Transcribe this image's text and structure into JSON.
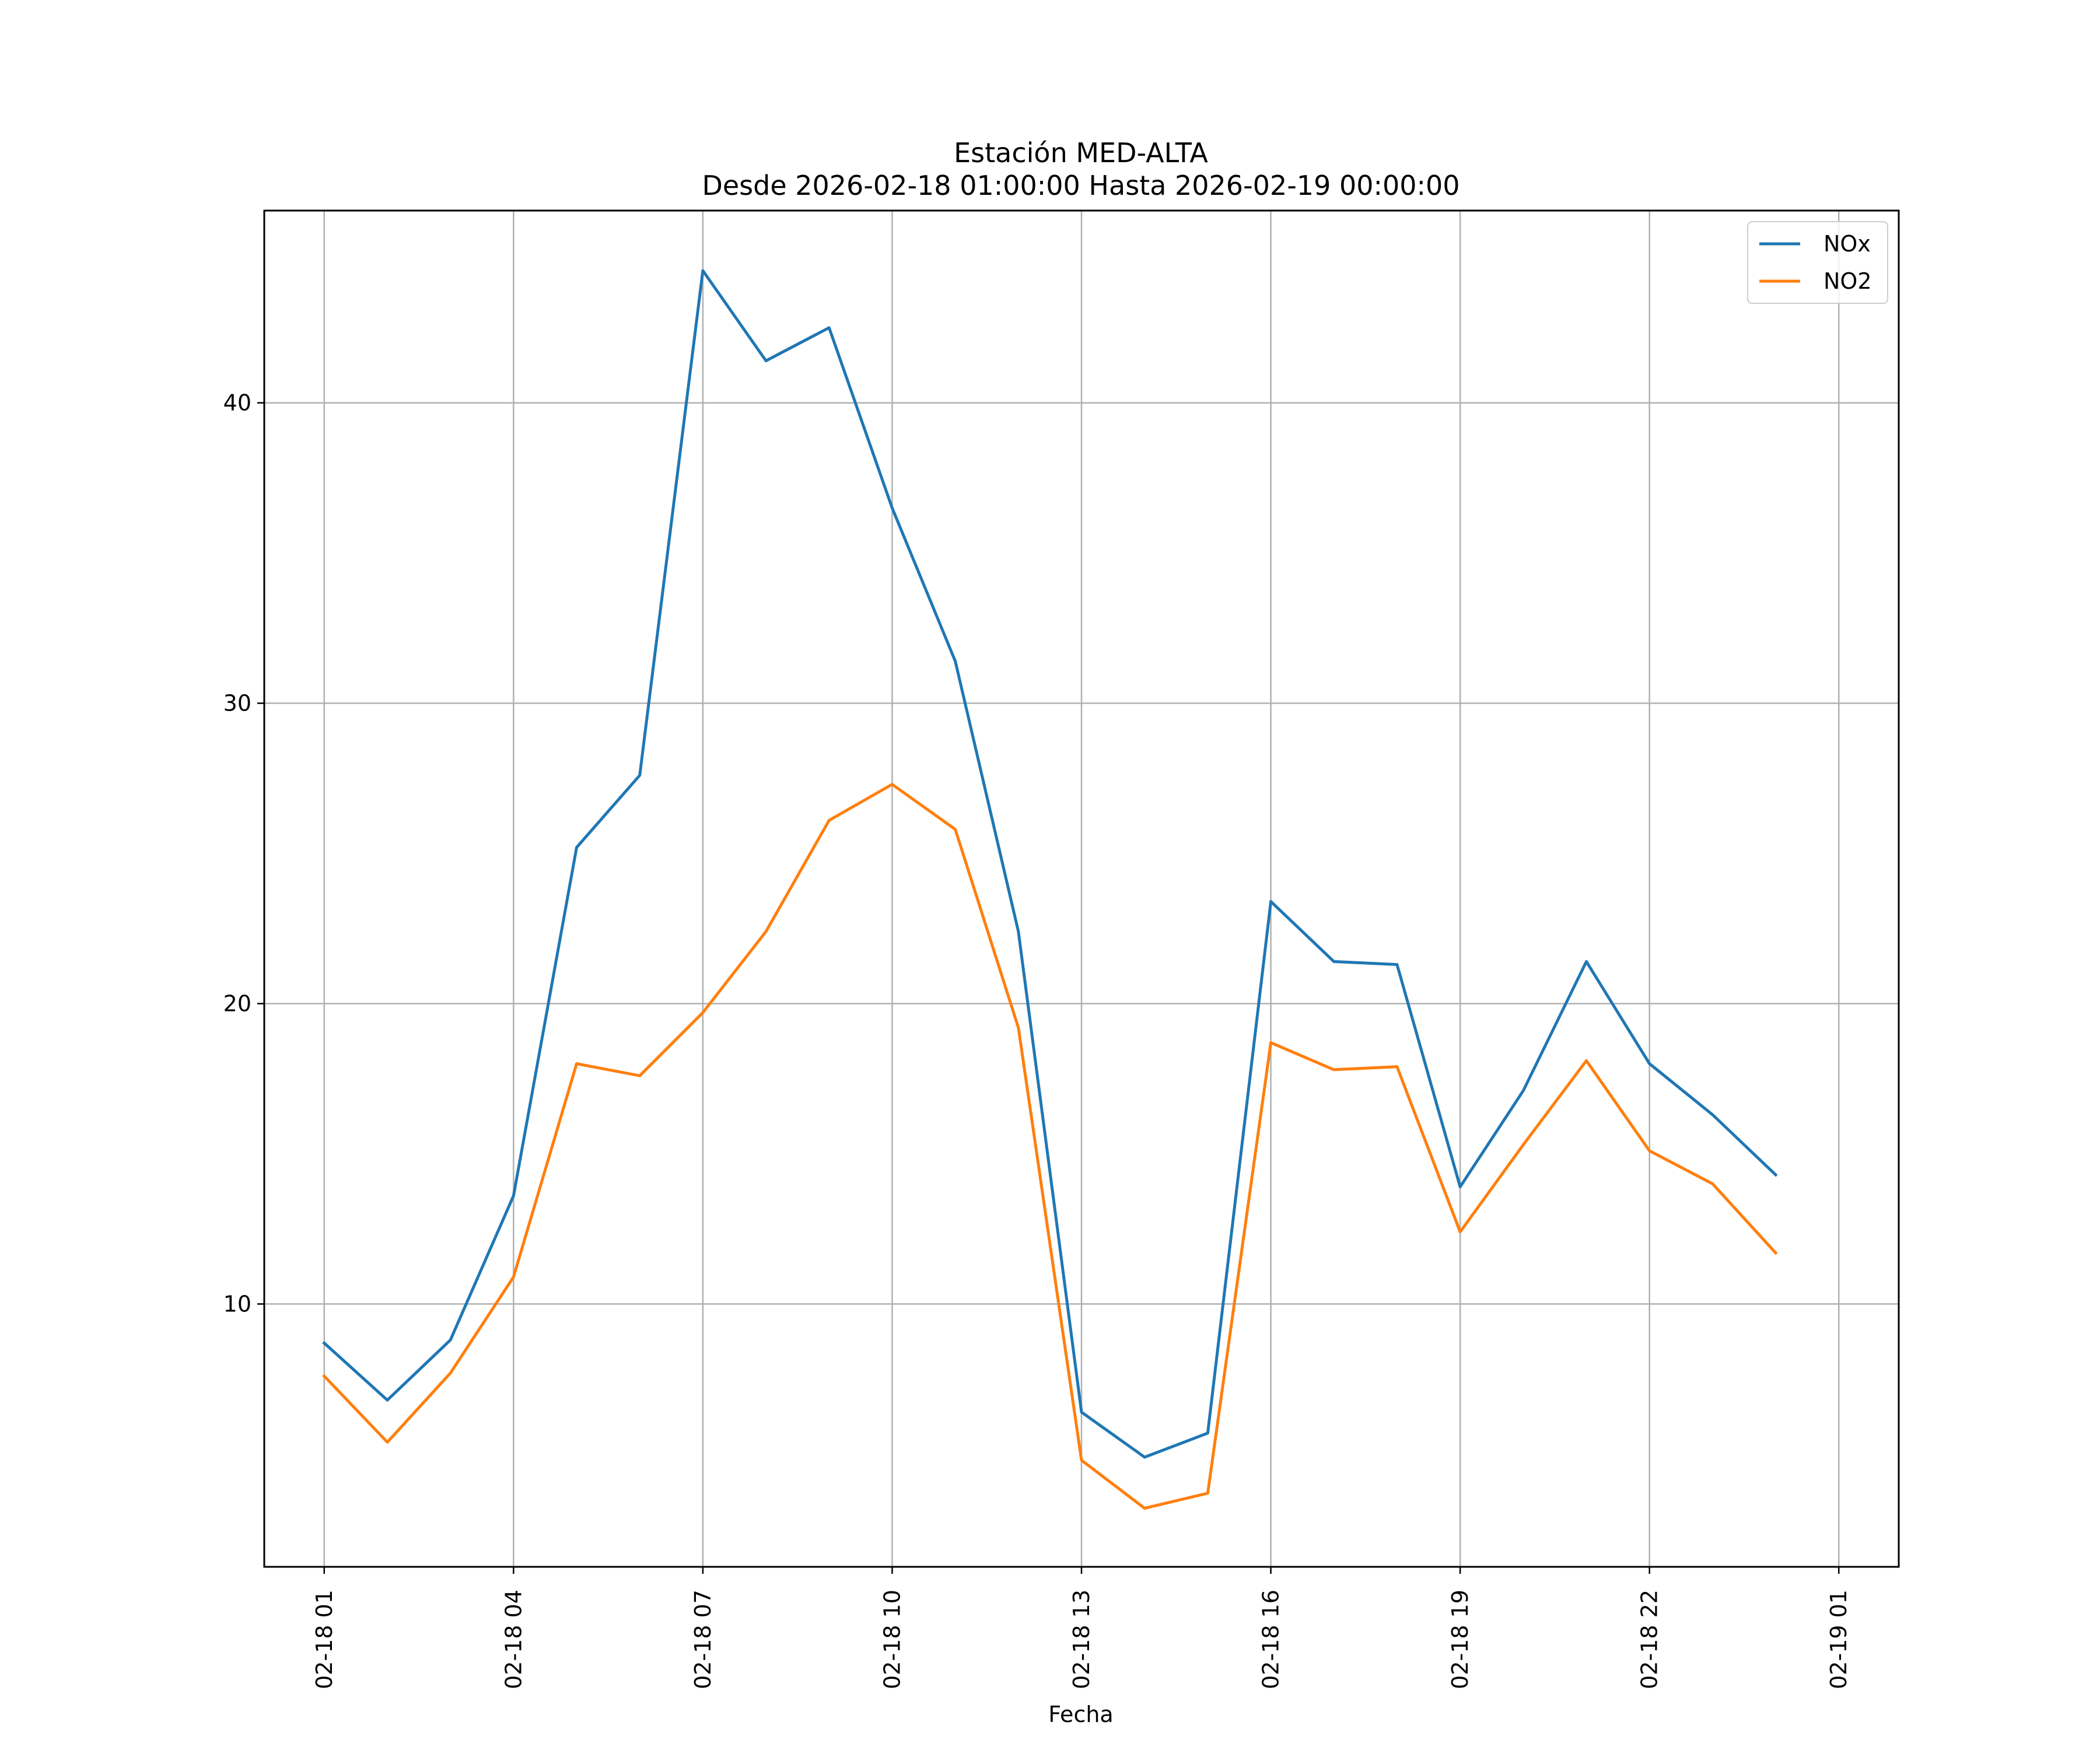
{
  "chart_data": {
    "type": "line",
    "title": "Estación MED-ALTA",
    "subtitle": "Desde 2026-02-18 01:00:00 Hasta 2026-02-19 00:00:00",
    "xlabel": "Fecha",
    "ylabel": "",
    "x": [
      "2026-02-18 01:00",
      "2026-02-18 02:00",
      "2026-02-18 03:00",
      "2026-02-18 04:00",
      "2026-02-18 05:00",
      "2026-02-18 06:00",
      "2026-02-18 07:00",
      "2026-02-18 08:00",
      "2026-02-18 09:00",
      "2026-02-18 10:00",
      "2026-02-18 11:00",
      "2026-02-18 12:00",
      "2026-02-18 13:00",
      "2026-02-18 14:00",
      "2026-02-18 15:00",
      "2026-02-18 16:00",
      "2026-02-18 17:00",
      "2026-02-18 18:00",
      "2026-02-18 19:00",
      "2026-02-18 20:00",
      "2026-02-18 21:00",
      "2026-02-18 22:00",
      "2026-02-18 23:00",
      "2026-02-19 00:00"
    ],
    "series": [
      {
        "name": "NOx",
        "color": "#1f77b4",
        "values": [
          8.7,
          6.8,
          8.8,
          13.6,
          25.2,
          27.6,
          44.4,
          41.4,
          42.5,
          36.5,
          31.4,
          22.4,
          6.4,
          4.9,
          5.7,
          23.4,
          21.4,
          21.3,
          13.9,
          17.1,
          21.4,
          18.0,
          16.3,
          14.3
        ]
      },
      {
        "name": "NO2",
        "color": "#ff7f0e",
        "values": [
          7.6,
          5.4,
          7.7,
          10.9,
          18.0,
          17.6,
          19.7,
          22.4,
          26.1,
          27.3,
          25.8,
          19.2,
          4.8,
          3.2,
          3.7,
          18.7,
          17.8,
          17.9,
          12.4,
          15.3,
          18.1,
          15.1,
          14.0,
          11.7
        ]
      }
    ],
    "x_ticks": [
      "02-18 01",
      "02-18 04",
      "02-18 07",
      "02-18 10",
      "02-18 13",
      "02-18 16",
      "02-18 19",
      "02-18 22",
      "02-19 01"
    ],
    "y_ticks": [
      10,
      20,
      30,
      40
    ],
    "ylim": [
      1.25,
      46.4
    ],
    "xlim": [
      "2026-02-18 00:03",
      "2026-02-19 01:57"
    ],
    "grid": true,
    "legend_position": "top-right"
  }
}
